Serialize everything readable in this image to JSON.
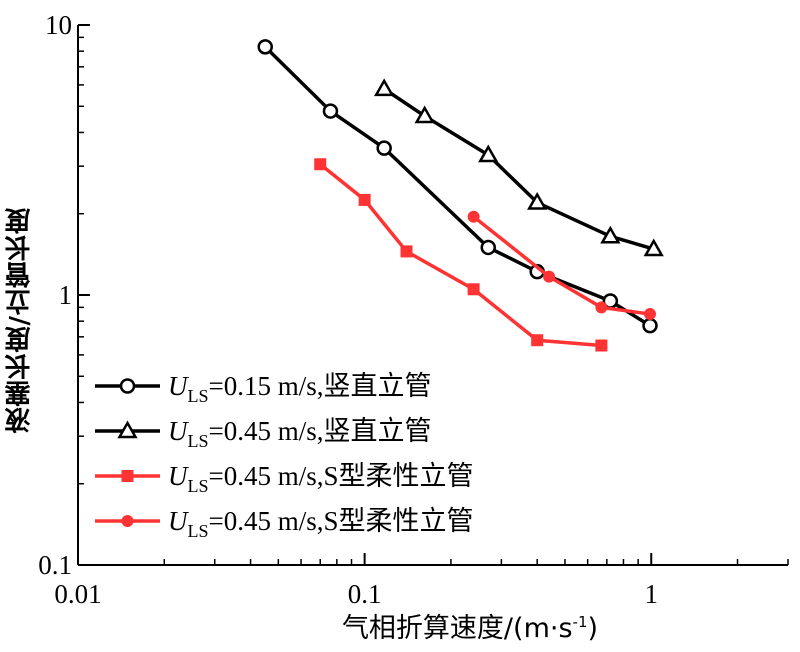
{
  "chart_data": {
    "type": "line",
    "xscale": "log",
    "yscale": "log",
    "xlim": [
      0.01,
      3
    ],
    "ylim": [
      0.1,
      10
    ],
    "xticks": [
      {
        "value": 0.01,
        "label": "0.01"
      },
      {
        "value": 0.1,
        "label": "0.1"
      },
      {
        "value": 1,
        "label": "1"
      }
    ],
    "yticks": [
      {
        "value": 0.1,
        "label": "0.1"
      },
      {
        "value": 1,
        "label": "1"
      },
      {
        "value": 10,
        "label": "10"
      }
    ],
    "xlabel": "气相折算速度/(m·s",
    "xlabel_sup": "-1",
    "xlabel_tail": ")",
    "ylabel": "液塞长度/立管长度",
    "grid": false,
    "legend_position": "bottom-left",
    "series": [
      {
        "legend_prefix": "U",
        "legend_sub": "LS",
        "legend_suffix": "=0.15 m/s,竖直立管",
        "color": "#000000",
        "marker": "circle-open",
        "x": [
          0.045,
          0.076,
          0.117,
          0.27,
          0.4,
          0.72,
          0.99
        ],
        "y": [
          8.3,
          4.8,
          3.5,
          1.5,
          1.22,
          0.95,
          0.77
        ]
      },
      {
        "legend_prefix": "U",
        "legend_sub": "LS",
        "legend_suffix": "=0.45 m/s,竖直立管",
        "color": "#000000",
        "marker": "triangle-open",
        "x": [
          0.117,
          0.162,
          0.27,
          0.4,
          0.72,
          1.02
        ],
        "y": [
          5.8,
          4.6,
          3.3,
          2.2,
          1.65,
          1.48
        ]
      },
      {
        "legend_prefix": "U",
        "legend_sub": "LS",
        "legend_suffix": "=0.45 m/s,S型柔性立管",
        "color": "#ff3333",
        "marker": "square-filled",
        "x": [
          0.07,
          0.1,
          0.14,
          0.24,
          0.4,
          0.67
        ],
        "y": [
          3.05,
          2.25,
          1.45,
          1.05,
          0.68,
          0.65
        ]
      },
      {
        "legend_prefix": "U",
        "legend_sub": "LS",
        "legend_suffix": "=0.45 m/s,S型柔性立管",
        "color": "#ff3333",
        "marker": "circle-filled",
        "x": [
          0.24,
          0.44,
          0.67,
          0.99
        ],
        "y": [
          1.95,
          1.17,
          0.9,
          0.85
        ]
      }
    ]
  }
}
